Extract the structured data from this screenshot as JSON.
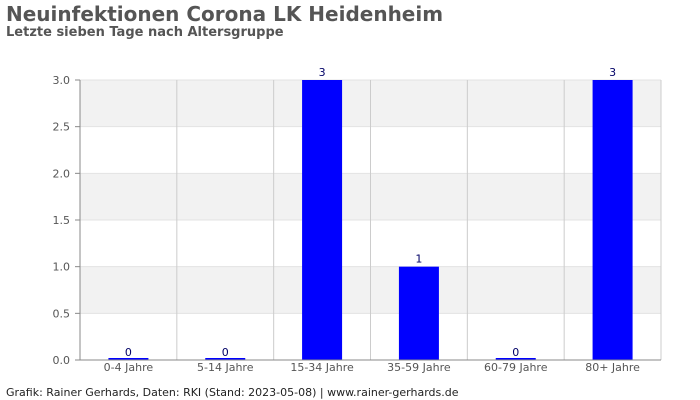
{
  "title": "Neuinfektionen Corona LK Heidenheim",
  "subtitle": "Letzte sieben Tage nach Altersgruppe",
  "footer": "Grafik: Rainer Gerhards, Daten: RKI (Stand: 2023-05-08) | www.rainer-gerhards.de",
  "colors": {
    "bar": "#0000ff",
    "band": "#f2f2f2",
    "grid": "#cccccc",
    "axis": "#888888",
    "text": "#555555",
    "label": "#000066"
  },
  "chart_data": {
    "type": "bar",
    "categories": [
      "0-4 Jahre",
      "5-14 Jahre",
      "15-34 Jahre",
      "35-59 Jahre",
      "60-79 Jahre",
      "80+ Jahre"
    ],
    "values": [
      0,
      0,
      3,
      1,
      0,
      3
    ],
    "data_labels": [
      "0",
      "0",
      "3",
      "1",
      "0",
      "3"
    ],
    "yticks": [
      "0.0",
      "0.5",
      "1.0",
      "1.5",
      "2.0",
      "2.5",
      "3.0"
    ],
    "ylim": [
      0,
      3
    ],
    "xlabel": "",
    "ylabel": "",
    "grid": true,
    "legend": "none"
  }
}
